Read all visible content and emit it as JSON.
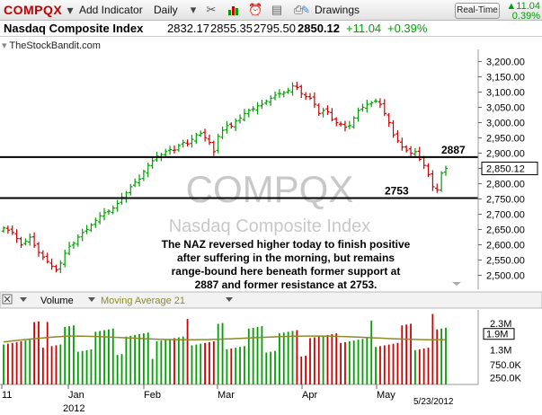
{
  "toolbar": {
    "symbol": "COMPQX",
    "add_indicator": "Add Indicator",
    "period": "Daily",
    "drawings": "Drawings",
    "realtime": "Real-Time",
    "change_value": "11.04",
    "change_percent": "0.39%",
    "icons": [
      "tools-icon",
      "bar-chart-icon",
      "clock-icon",
      "notepad-icon",
      "print-icon",
      "drawings-icon"
    ]
  },
  "quote": {
    "name": "Nasdaq Composite Index",
    "open": "2832.17",
    "high": "2855.35",
    "low": "2795.50",
    "close": "2850.12",
    "change": "+11.04",
    "percent": "+0.39%"
  },
  "source": "TheStockBandit.com",
  "chart_data": {
    "type": "candlestick",
    "watermark_symbol": "COMPQX",
    "watermark_name": "Nasdaq Composite Index",
    "annotation": [
      "The NAZ reversed higher today to finish positive",
      "after suffering in the morning, but remains",
      "range-bound here beneath former support at",
      "2887 and former resistance at 2753."
    ],
    "levels": [
      {
        "value": 2887,
        "label": "2887"
      },
      {
        "value": 2753,
        "label": "2753"
      }
    ],
    "last_price": "2,850.12",
    "y_ticks": [
      "3,200.00",
      "3,150.00",
      "3,100.00",
      "3,050.00",
      "3,000.00",
      "2,950.00",
      "2,900.00",
      "2,850.00",
      "2,800.00",
      "2,750.00",
      "2,700.00",
      "2,650.00",
      "2,600.00",
      "2,550.00",
      "2,500.00"
    ],
    "ylim": [
      2475,
      3225
    ],
    "x_labels": [
      "11",
      "Jan",
      "Feb",
      "Mar",
      "Apr",
      "May"
    ],
    "year_label": "2012",
    "date_label": "5/23/2012",
    "close_series": [
      2655,
      2648,
      2640,
      2620,
      2600,
      2612,
      2625,
      2598,
      2575,
      2560,
      2545,
      2530,
      2518,
      2540,
      2572,
      2595,
      2605,
      2625,
      2640,
      2650,
      2665,
      2680,
      2695,
      2705,
      2710,
      2720,
      2735,
      2755,
      2770,
      2790,
      2805,
      2815,
      2840,
      2860,
      2875,
      2890,
      2895,
      2905,
      2912,
      2910,
      2925,
      2935,
      2930,
      2945,
      2960,
      2965,
      2950,
      2935,
      2905,
      2955,
      2975,
      2990,
      2988,
      3005,
      3015,
      3030,
      3040,
      3045,
      3055,
      3060,
      3070,
      3080,
      3090,
      3095,
      3098,
      3105,
      3120,
      3115,
      3095,
      3085,
      3080,
      3060,
      3030,
      3040,
      3035,
      3010,
      3000,
      2995,
      2985,
      2990,
      3015,
      3040,
      3050,
      3060,
      3065,
      3070,
      3060,
      3030,
      3000,
      2960,
      2940,
      2920,
      2910,
      2900,
      2905,
      2880,
      2860,
      2830,
      2790,
      2780,
      2835,
      2850
    ]
  },
  "volume": {
    "title": "Volume",
    "ma_label": "Moving Average 21",
    "ticks": [
      "2.3M",
      "1.9M",
      "1.3M",
      "750.0K",
      "250.0K"
    ],
    "current": "1.9M",
    "ylim": [
      0,
      2700000
    ],
    "ma_value": 1900000
  },
  "colors": {
    "up": "#00a000",
    "down": "#d00000",
    "level": "#000000",
    "watermark": "#c8c8c8",
    "ma": "#8b8b28"
  }
}
